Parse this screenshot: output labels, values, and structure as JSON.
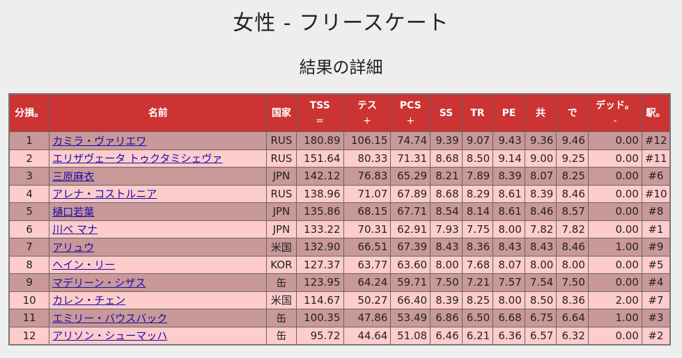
{
  "page": {
    "title": "女性 - フリースケート",
    "subtitle": "結果の詳細"
  },
  "table": {
    "headers": {
      "rank": "分損。",
      "name": "名前",
      "nation": "国家",
      "tss": "TSS",
      "tss_sub": "=",
      "tes": "テス",
      "tes_sub": "+",
      "pcs": "PCS",
      "pcs_sub": "+",
      "ss": "SS",
      "tr": "TR",
      "pe": "PE",
      "co": "共",
      "in": "で",
      "ded": "デッド。",
      "ded_sub": "-",
      "sp": "駅。"
    },
    "rows": [
      {
        "rank": "1",
        "name": "カミラ・ヴァリエワ",
        "nation": "RUS",
        "tss": "180.89",
        "tes": "106.15",
        "pcs": "74.74",
        "ss": "9.39",
        "tr": "9.07",
        "pe": "9.43",
        "co": "9.36",
        "in": "9.46",
        "ded": "0.00",
        "sp": "#12"
      },
      {
        "rank": "2",
        "name": "エリザヴェータ トゥクタミシェヴァ",
        "nation": "RUS",
        "tss": "151.64",
        "tes": "80.33",
        "pcs": "71.31",
        "ss": "8.68",
        "tr": "8.50",
        "pe": "9.14",
        "co": "9.00",
        "in": "9.25",
        "ded": "0.00",
        "sp": "#11"
      },
      {
        "rank": "3",
        "name": "三原麻衣",
        "nation": "JPN",
        "tss": "142.12",
        "tes": "76.83",
        "pcs": "65.29",
        "ss": "8.21",
        "tr": "7.89",
        "pe": "8.39",
        "co": "8.07",
        "in": "8.25",
        "ded": "0.00",
        "sp": "#6"
      },
      {
        "rank": "4",
        "name": "アレナ・コストルニア",
        "nation": "RUS",
        "tss": "138.96",
        "tes": "71.07",
        "pcs": "67.89",
        "ss": "8.68",
        "tr": "8.29",
        "pe": "8.61",
        "co": "8.39",
        "in": "8.46",
        "ded": "0.00",
        "sp": "#10"
      },
      {
        "rank": "5",
        "name": "樋口若葉",
        "nation": "JPN",
        "tss": "135.86",
        "tes": "68.15",
        "pcs": "67.71",
        "ss": "8.54",
        "tr": "8.14",
        "pe": "8.61",
        "co": "8.46",
        "in": "8.57",
        "ded": "0.00",
        "sp": "#8"
      },
      {
        "rank": "6",
        "name": "川べ マナ",
        "nation": "JPN",
        "tss": "133.22",
        "tes": "70.31",
        "pcs": "62.91",
        "ss": "7.93",
        "tr": "7.75",
        "pe": "8.00",
        "co": "7.82",
        "in": "7.82",
        "ded": "0.00",
        "sp": "#1"
      },
      {
        "rank": "7",
        "name": "アリュウ",
        "nation": "米国",
        "tss": "132.90",
        "tes": "66.51",
        "pcs": "67.39",
        "ss": "8.43",
        "tr": "8.36",
        "pe": "8.43",
        "co": "8.43",
        "in": "8.46",
        "ded": "1.00",
        "sp": "#9"
      },
      {
        "rank": "8",
        "name": "ヘイン・リー",
        "nation": "KOR",
        "tss": "127.37",
        "tes": "63.77",
        "pcs": "63.60",
        "ss": "8.00",
        "tr": "7.68",
        "pe": "8.07",
        "co": "8.00",
        "in": "8.00",
        "ded": "0.00",
        "sp": "#5"
      },
      {
        "rank": "9",
        "name": "マデリーン・シザス",
        "nation": "缶",
        "tss": "123.95",
        "tes": "64.24",
        "pcs": "59.71",
        "ss": "7.50",
        "tr": "7.21",
        "pe": "7.57",
        "co": "7.54",
        "in": "7.50",
        "ded": "0.00",
        "sp": "#4"
      },
      {
        "rank": "10",
        "name": "カレン・チェン",
        "nation": "米国",
        "tss": "114.67",
        "tes": "50.27",
        "pcs": "66.40",
        "ss": "8.39",
        "tr": "8.25",
        "pe": "8.00",
        "co": "8.50",
        "in": "8.36",
        "ded": "2.00",
        "sp": "#7"
      },
      {
        "rank": "11",
        "name": "エミリー・バウスバック",
        "nation": "缶",
        "tss": "100.35",
        "tes": "47.86",
        "pcs": "53.49",
        "ss": "6.86",
        "tr": "6.50",
        "pe": "6.68",
        "co": "6.75",
        "in": "6.64",
        "ded": "1.00",
        "sp": "#3"
      },
      {
        "rank": "12",
        "name": "アリソン・シューマッハ",
        "nation": "缶",
        "tss": "95.72",
        "tes": "44.64",
        "pcs": "51.08",
        "ss": "6.46",
        "tr": "6.21",
        "pe": "6.36",
        "co": "6.57",
        "in": "6.32",
        "ded": "0.00",
        "sp": "#2"
      }
    ]
  }
}
